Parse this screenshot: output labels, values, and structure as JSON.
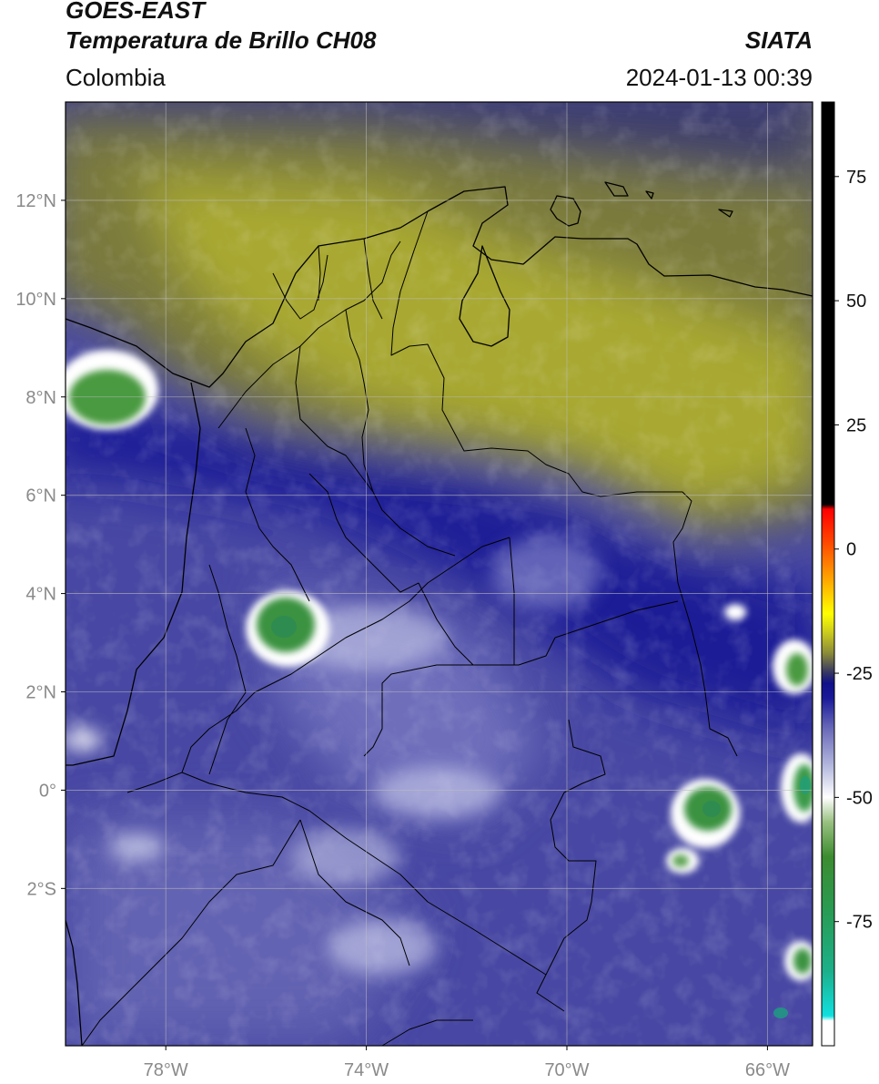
{
  "header": {
    "satellite": "GOES-EAST",
    "product": "Temperatura de Brillo CH08",
    "agency": "SIATA",
    "region": "Colombia",
    "timestamp": "2024-01-13 00:39"
  },
  "map": {
    "lon_range": [
      -80,
      -65.1
    ],
    "lat_range": [
      -5.2,
      14.0
    ],
    "lat_ticks": [
      {
        "value": 12,
        "label": "12°N"
      },
      {
        "value": 10,
        "label": "10°N"
      },
      {
        "value": 8,
        "label": "8°N"
      },
      {
        "value": 6,
        "label": "6°N"
      },
      {
        "value": 4,
        "label": "4°N"
      },
      {
        "value": 2,
        "label": "2°N"
      },
      {
        "value": 0,
        "label": "0°"
      },
      {
        "value": -2,
        "label": "2°S"
      }
    ],
    "lon_ticks": [
      {
        "value": -78,
        "label": "78°W"
      },
      {
        "value": -74,
        "label": "74°W"
      },
      {
        "value": -70,
        "label": "70°W"
      },
      {
        "value": -66,
        "label": "66°W"
      }
    ],
    "grid": true
  },
  "colorbar": {
    "range": [
      -100,
      90
    ],
    "ticks": [
      {
        "value": 75,
        "label": "75"
      },
      {
        "value": 50,
        "label": "50"
      },
      {
        "value": 25,
        "label": "25"
      },
      {
        "value": 0,
        "label": "0"
      },
      {
        "value": -25,
        "label": "-25"
      },
      {
        "value": -50,
        "label": "-50"
      },
      {
        "value": -75,
        "label": "-75"
      }
    ],
    "stops": [
      {
        "value": -100,
        "color": "#ffffff"
      },
      {
        "value": -95,
        "color": "#ffffff"
      },
      {
        "value": -94,
        "color": "#10e0e0"
      },
      {
        "value": -85,
        "color": "#1cb08a"
      },
      {
        "value": -72,
        "color": "#2a9a50"
      },
      {
        "value": -62,
        "color": "#3c8c30"
      },
      {
        "value": -55,
        "color": "#98c080"
      },
      {
        "value": -50,
        "color": "#ffffff"
      },
      {
        "value": -44,
        "color": "#b8bce0"
      },
      {
        "value": -36,
        "color": "#6868b8"
      },
      {
        "value": -30,
        "color": "#1a1a9a"
      },
      {
        "value": -27,
        "color": "#10108a"
      },
      {
        "value": -25,
        "color": "#333366"
      },
      {
        "value": -21,
        "color": "#8a8a3a"
      },
      {
        "value": -17,
        "color": "#c8c820"
      },
      {
        "value": -13,
        "color": "#ffff00"
      },
      {
        "value": -6,
        "color": "#ffa500"
      },
      {
        "value": 2,
        "color": "#ff4000"
      },
      {
        "value": 8,
        "color": "#ff0000"
      },
      {
        "value": 9,
        "color": "#000000"
      },
      {
        "value": 90,
        "color": "#000000"
      }
    ]
  }
}
